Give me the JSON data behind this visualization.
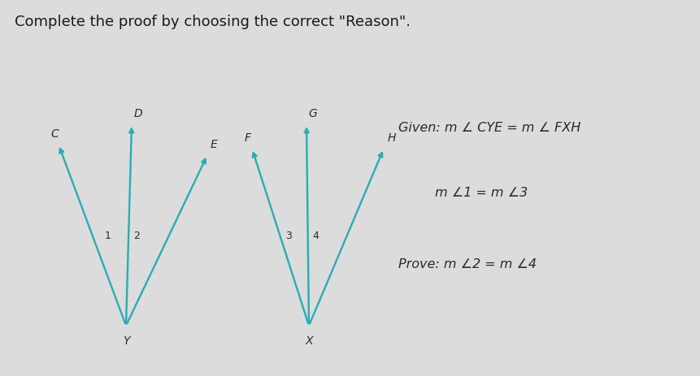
{
  "background_color": "#dcdcdc",
  "title_text": "Complete the proof by choosing the correct \"Reason\".",
  "title_fontsize": 13,
  "title_color": "#1a1a1a",
  "line_color": "#2aacb4",
  "label_color": "#2a2a2a",
  "text_color": "#2a2a2a",
  "given_line1": "Given: m ∠ CYE = m ∠ FXH",
  "given_line2": "m ∠1 = m ∠3",
  "prove_line": "Prove: m ∠2 = m ∠4",
  "fig_width": 8.61,
  "fig_height": 4.63,
  "dpi": 100,
  "lw": 1.7
}
